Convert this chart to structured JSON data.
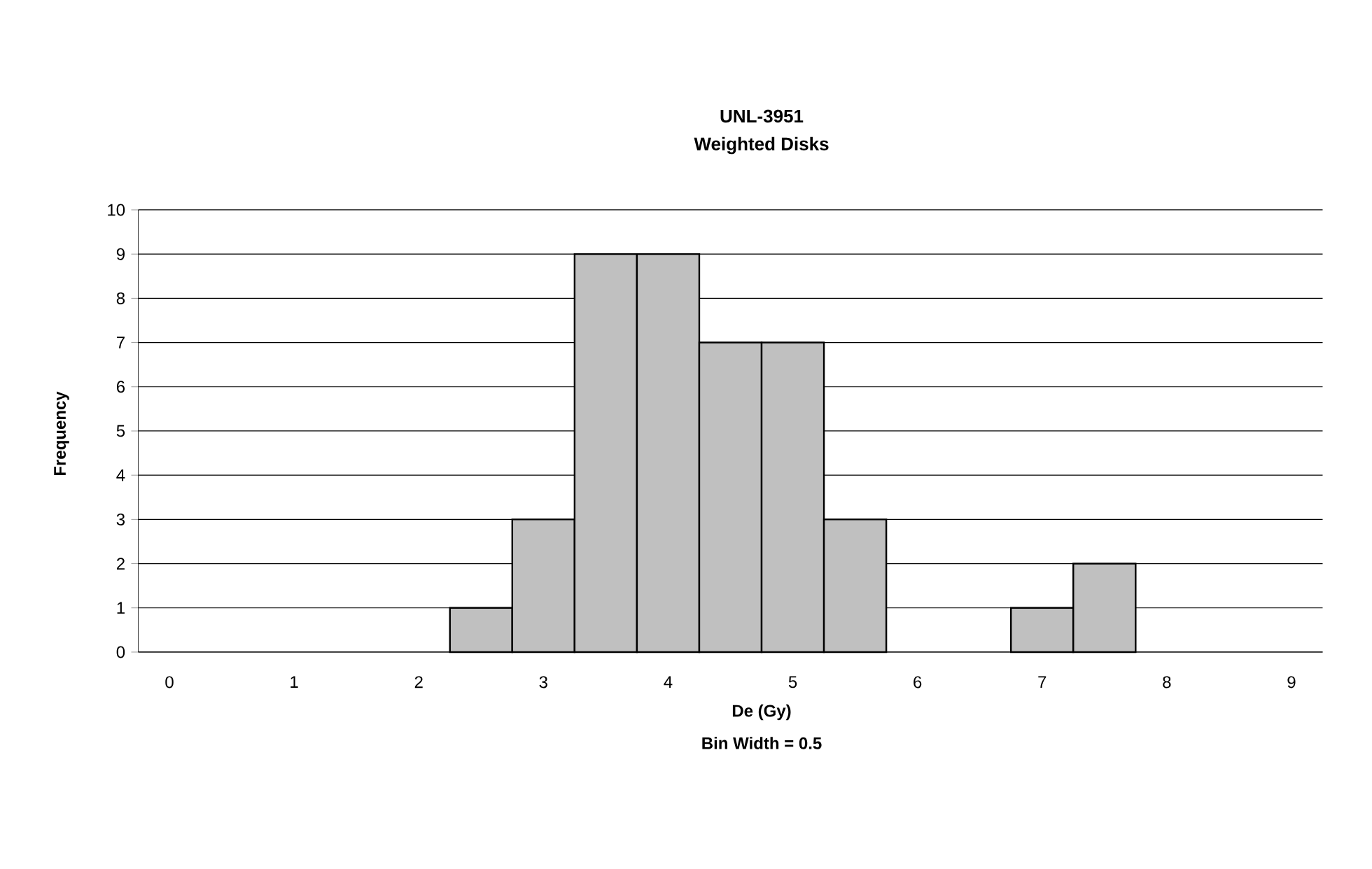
{
  "chart_data": {
    "type": "bar",
    "title": "UNL-3951",
    "subtitle": "Weighted Disks",
    "xlabel": "De (Gy)",
    "ylabel": "Frequency",
    "annotations": [
      "Bin Width =  0.5"
    ],
    "categories": [
      "0",
      null,
      "1",
      null,
      "2",
      null,
      "3",
      null,
      "4",
      null,
      "5",
      null,
      "6",
      null,
      "7",
      null,
      "8",
      null,
      "9"
    ],
    "values": [
      0,
      0,
      0,
      0,
      0,
      1,
      3,
      9,
      9,
      7,
      7,
      3,
      0,
      0,
      1,
      2,
      0,
      0,
      0
    ],
    "color": "#c0c0c0",
    "ylim": [
      0,
      10
    ],
    "yticks": [
      0,
      1,
      2,
      3,
      4,
      5,
      6,
      7,
      8,
      9,
      10
    ],
    "grid": "y"
  }
}
